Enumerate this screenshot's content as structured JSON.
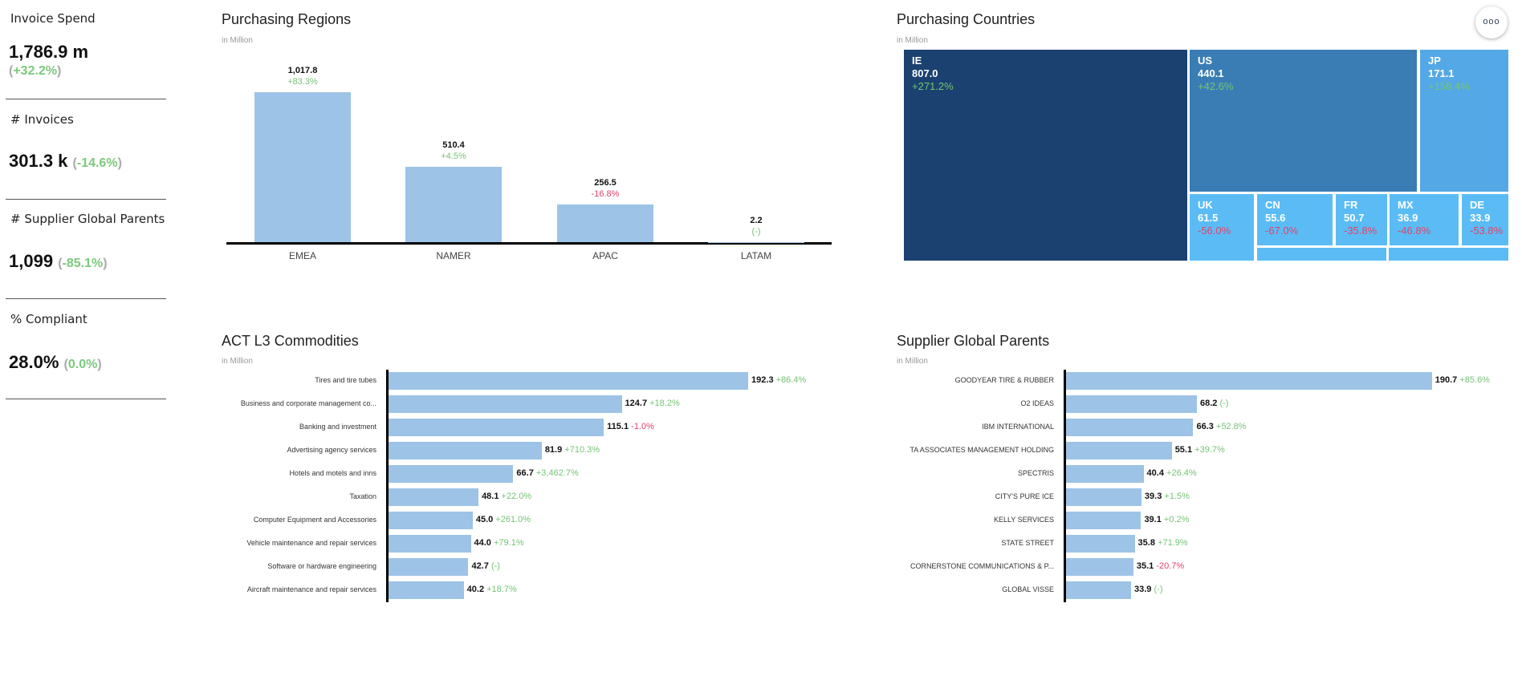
{
  "colors": {
    "bar": "#9dc3e6",
    "positive": "#74c474",
    "negative": "#e0436a",
    "ie": "#1b4170",
    "us": "#3a7db5",
    "jp": "#54a8e6",
    "small": "#5bbcf5"
  },
  "kpis": [
    {
      "title": "Invoice Spend",
      "value": "1,786.9 m",
      "delta": "+32.2%"
    },
    {
      "title": "# Invoices",
      "value": "301.3 k",
      "delta": "-14.6%"
    },
    {
      "title": "# Supplier Global Parents",
      "value": "1,099",
      "delta": "-85.1%"
    },
    {
      "title": "% Compliant",
      "value": "28.0%",
      "delta": "0.0%"
    }
  ],
  "more_button": {
    "icon": "more-horizontal-icon",
    "label": "ooo"
  },
  "chart_data": [
    {
      "type": "bar",
      "title": "Purchasing Regions",
      "subtitle": "in Million",
      "categories": [
        "EMEA",
        "NAMER",
        "APAC",
        "LATAM"
      ],
      "values": [
        1017.8,
        510.4,
        256.5,
        2.2
      ],
      "value_labels": [
        "1,017.8",
        "510.4",
        "256.5",
        "2.2"
      ],
      "deltas": [
        "+83.3%",
        "+4.5%",
        "-16.8%",
        "(-)"
      ]
    },
    {
      "type": "treemap",
      "title": "Purchasing Countries",
      "subtitle": "in Million",
      "items": [
        {
          "label": "IE",
          "value": "807.0",
          "delta": "+271.2%"
        },
        {
          "label": "US",
          "value": "440.1",
          "delta": "+42.6%"
        },
        {
          "label": "JP",
          "value": "171.1",
          "delta": "+158.4%"
        },
        {
          "label": "UK",
          "value": "61.5",
          "delta": "-56.0%"
        },
        {
          "label": "CN",
          "value": "55.6",
          "delta": "-67.0%"
        },
        {
          "label": "FR",
          "value": "50.7",
          "delta": "-35.8%"
        },
        {
          "label": "MX",
          "value": "36.9",
          "delta": "-46.8%"
        },
        {
          "label": "DE",
          "value": "33.9",
          "delta": "-53.8%"
        }
      ]
    },
    {
      "type": "bar",
      "orientation": "horizontal",
      "title": "ACT L3 Commodities",
      "subtitle": "in Million",
      "categories": [
        "Tires and tire tubes",
        "Business and corporate management co...",
        "Banking and investment",
        "Advertising agency services",
        "Hotels and motels and inns",
        "Taxation",
        "Computer Equipment and Accessories",
        "Vehicle maintenance and repair services",
        "Software or hardware engineering",
        "Aircraft maintenance and repair services"
      ],
      "values": [
        192.3,
        124.7,
        115.1,
        81.9,
        66.7,
        48.1,
        45.0,
        44.0,
        42.7,
        40.2
      ],
      "value_labels": [
        "192.3",
        "124.7",
        "115.1",
        "81.9",
        "66.7",
        "48.1",
        "45.0",
        "44.0",
        "42.7",
        "40.2"
      ],
      "deltas": [
        "+86.4%",
        "+18.2%",
        "-1.0%",
        "+710.3%",
        "+3,462.7%",
        "+22.0%",
        "+261.0%",
        "+79.1%",
        "(-)",
        "+18.7%"
      ]
    },
    {
      "type": "bar",
      "orientation": "horizontal",
      "title": "Supplier Global Parents",
      "subtitle": "in Million",
      "categories": [
        "GOODYEAR TIRE & RUBBER",
        "O2 IDEAS",
        "IBM INTERNATIONAL",
        "TA ASSOCIATES MANAGEMENT HOLDING",
        "SPECTRIS",
        "CITY'S PURE ICE",
        "KELLY SERVICES",
        "STATE STREET",
        "CORNERSTONE COMMUNICATIONS & P...",
        "GLOBAL VISSE"
      ],
      "values": [
        190.7,
        68.2,
        66.3,
        55.1,
        40.4,
        39.3,
        39.1,
        35.8,
        35.1,
        33.9
      ],
      "value_labels": [
        "190.7",
        "68.2",
        "66.3",
        "55.1",
        "40.4",
        "39.3",
        "39.1",
        "35.8",
        "35.1",
        "33.9"
      ],
      "deltas": [
        "+85.6%",
        "(-)",
        "+52.8%",
        "+39.7%",
        "+26.4%",
        "+1.5%",
        "+0.2%",
        "+71.9%",
        "-20.7%",
        "(-)"
      ]
    }
  ]
}
